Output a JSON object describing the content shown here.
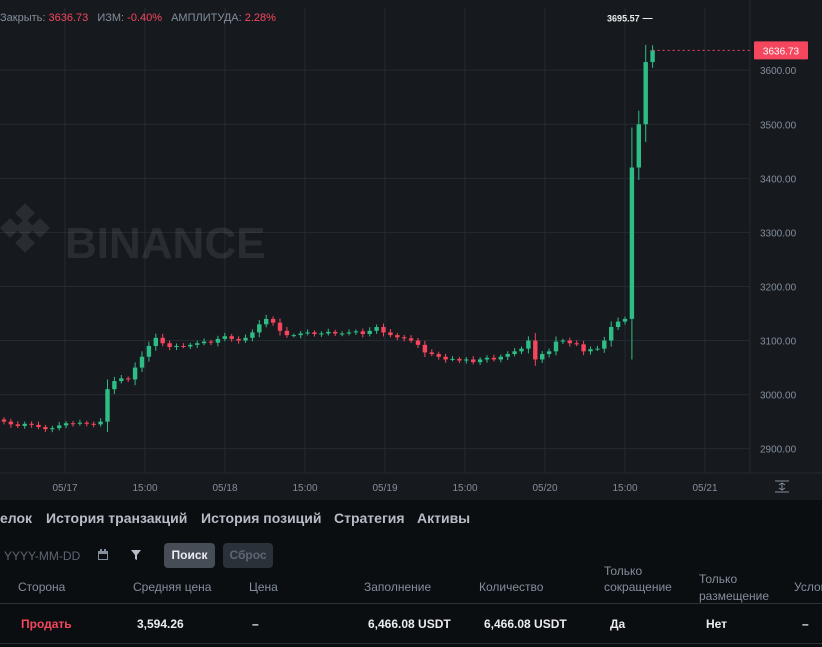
{
  "stats": {
    "close_label": "Закрыть:",
    "close_value": "3636.73",
    "change_label": "ИЗМ:",
    "change_value": "-0.40%",
    "amp_label": "АМПЛИТУДА:",
    "amp_value": "2.28%"
  },
  "watermark": "BINANCE",
  "colors": {
    "up": "#2ebd85",
    "down": "#f6465d",
    "grid": "#242a31",
    "text": "#848e9c"
  },
  "chart_data": {
    "type": "candlestick",
    "y_axis": {
      "ticks": [
        "3600.00",
        "3500.00",
        "3400.00",
        "3300.00",
        "3200.00",
        "3100.00",
        "3000.00",
        "2900.00"
      ],
      "range": [
        2855,
        3715
      ]
    },
    "x_axis": {
      "ticks": [
        "05/17",
        "15:00",
        "05/18",
        "15:00",
        "05/19",
        "15:00",
        "05/20",
        "15:00",
        "05/21"
      ]
    },
    "last_price": "3636.73",
    "high_marker": "3695.57",
    "closes": [
      2950,
      2945,
      2942,
      2946,
      2944,
      2940,
      2936,
      2938,
      2943,
      2947,
      2946,
      2948,
      2946,
      2945,
      2950,
      3010,
      3025,
      3030,
      3028,
      3050,
      3070,
      3090,
      3105,
      3095,
      3088,
      3090,
      3089,
      3092,
      3095,
      3098,
      3096,
      3103,
      3108,
      3103,
      3100,
      3105,
      3115,
      3130,
      3140,
      3133,
      3118,
      3110,
      3110,
      3113,
      3115,
      3112,
      3113,
      3116,
      3113,
      3113,
      3115,
      3117,
      3112,
      3118,
      3125,
      3115,
      3110,
      3106,
      3104,
      3100,
      3092,
      3078,
      3075,
      3070,
      3065,
      3066,
      3063,
      3065,
      3060,
      3065,
      3068,
      3065,
      3070,
      3075,
      3080,
      3085,
      3100,
      3065,
      3075,
      3080,
      3098,
      3100,
      3095,
      3093,
      3080,
      3084,
      3085,
      3100,
      3125,
      3135,
      3140,
      3420,
      3500,
      3615,
      3636.73
    ]
  },
  "tabs": [
    "елок",
    "История транзакций",
    "История позиций",
    "Стратегия",
    "Активы"
  ],
  "filters": {
    "date_placeholder": "YYYY-MM-DD",
    "search": "Поиск",
    "reset": "Сброс"
  },
  "table": {
    "headers": [
      "Сторона",
      "Средняя цена",
      "Цена",
      "Заполнение",
      "Количество",
      "Только",
      "сокращение",
      "Только",
      "размещение",
      "Услов"
    ],
    "row": [
      "Продать",
      "3,594.26",
      "–",
      "6,466.08 USDT",
      "6,466.08 USDT",
      "Да",
      "Нет",
      "–"
    ]
  }
}
